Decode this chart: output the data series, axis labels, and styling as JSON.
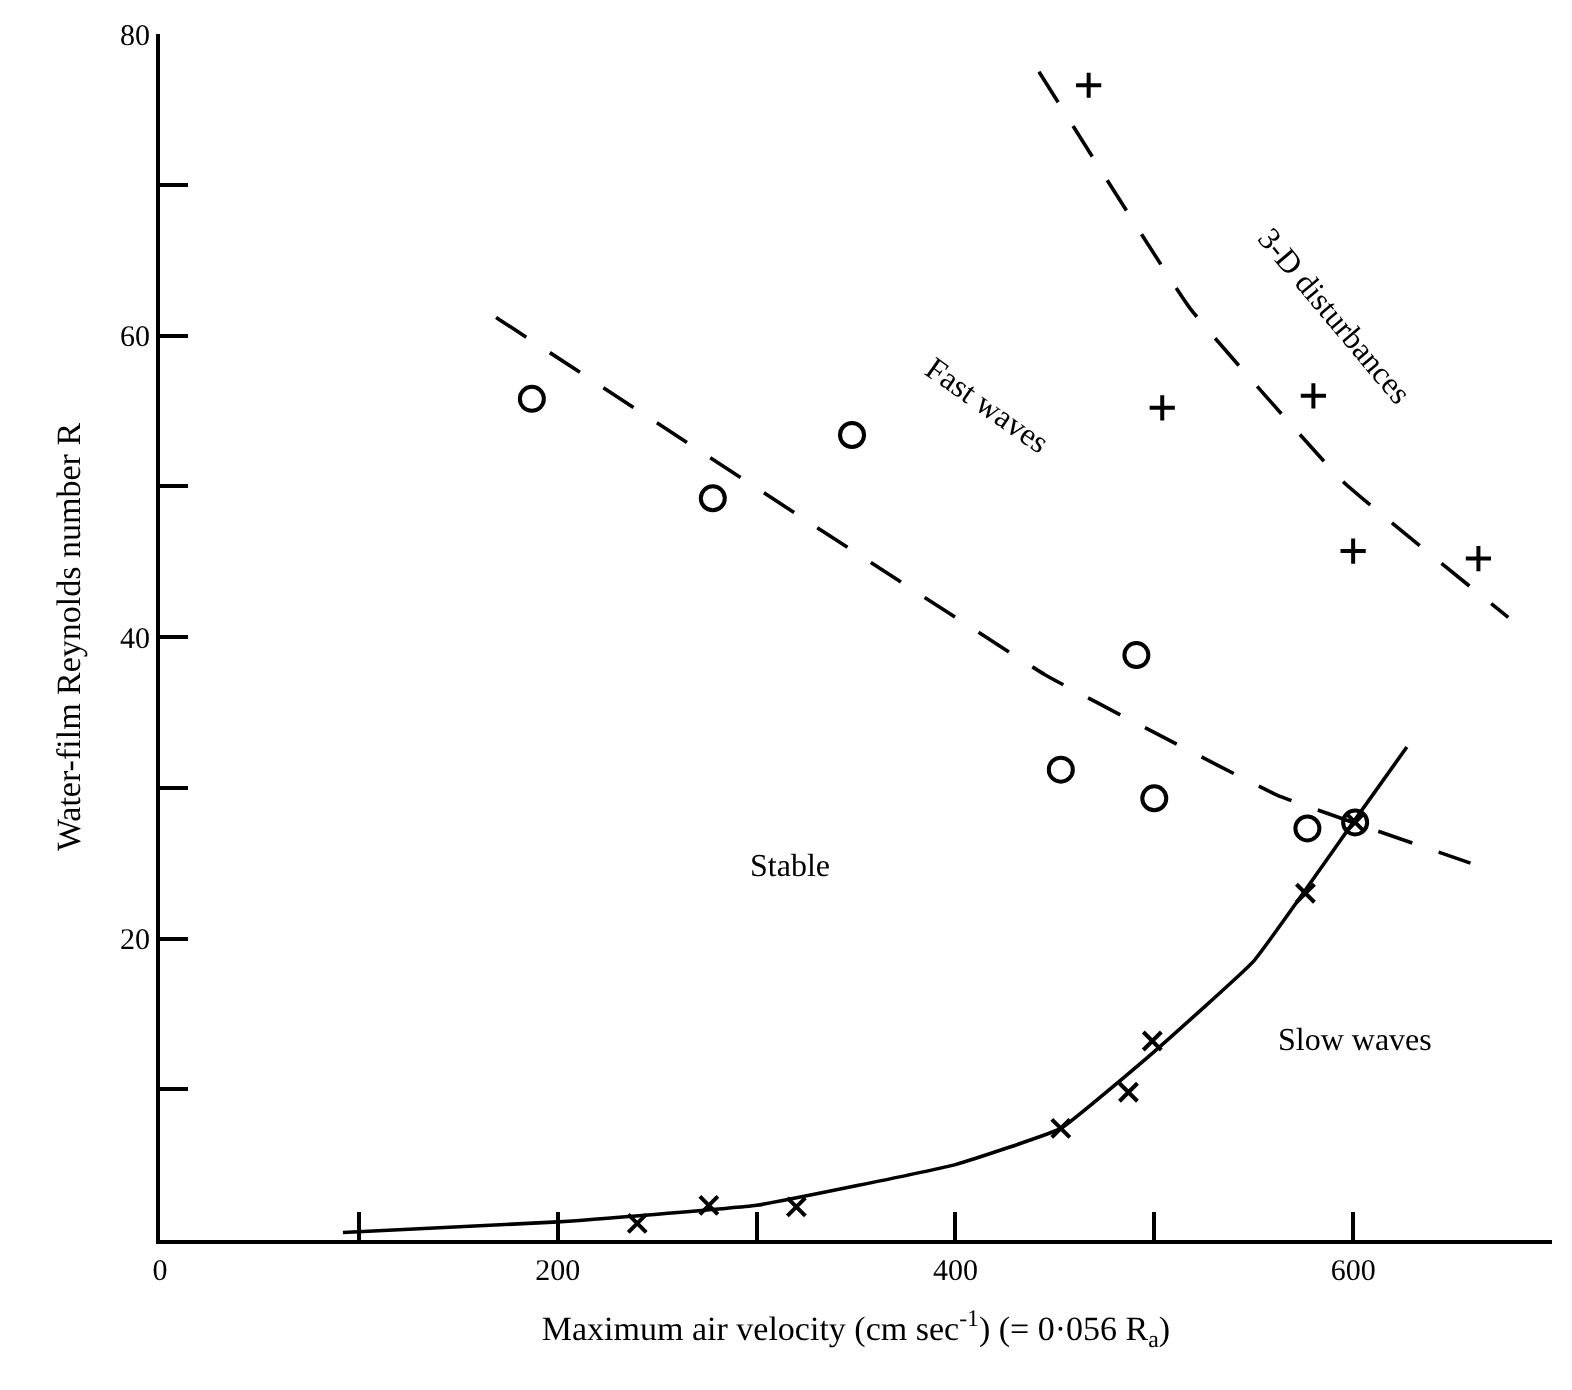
{
  "chart_data": {
    "type": "scatter",
    "xlabel": "Maximum air velocity (cm sec$^{-1}$) (= 0·056 R$_{a}$)",
    "ylabel": "Water-film Reynolds number R",
    "xlim": [
      0,
      700
    ],
    "ylim": [
      0,
      80
    ],
    "xticks": [
      0,
      {
        "value": 100,
        "label": null
      },
      200,
      {
        "value": 300,
        "label": null
      },
      400,
      {
        "value": 500,
        "label": null
      },
      600
    ],
    "yticks": [
      {
        "value": 0,
        "label": null
      },
      {
        "value": 10,
        "label": null
      },
      20,
      {
        "value": 30,
        "label": null
      },
      40,
      {
        "value": 50,
        "label": null
      },
      60,
      {
        "value": 70,
        "label": null
      },
      80
    ],
    "series": [
      {
        "marker": "circle",
        "color": "#000000",
        "x": [
          187,
          278,
          348,
          491,
          453,
          500,
          577,
          601
        ],
        "values": [
          55.8,
          49.2,
          53.4,
          38.8,
          31.2,
          29.3,
          27.3,
          27.7
        ]
      },
      {
        "marker": "cross",
        "color": "#000000",
        "x": [
          467,
          504,
          580,
          600,
          663
        ],
        "values": [
          76.6,
          55.2,
          56.0,
          45.7,
          45.2
        ]
      },
      {
        "marker": "x",
        "color": "#000000",
        "x": [
          240,
          276,
          320,
          453,
          487,
          499,
          576,
          601
        ],
        "values": [
          1.1,
          2.3,
          2.2,
          7.4,
          9.8,
          13.2,
          23.0,
          27.7
        ]
      },
      {
        "type": "line",
        "line_style": "solid",
        "color": "#000000",
        "x": [
          92,
          200,
          300,
          400,
          453,
          500,
          550,
          600,
          627
        ],
        "values": [
          0.5,
          1.2,
          2.3,
          5.0,
          7.4,
          12.5,
          18.5,
          27.7,
          32.7
        ]
      },
      {
        "type": "line",
        "line_style": "dashed",
        "color": "#000000",
        "x": [
          169,
          323,
          445,
          498,
          562,
          659
        ],
        "values": [
          61.2,
          47.9,
          37.5,
          33.8,
          29.5,
          25.0
        ]
      },
      {
        "type": "line",
        "line_style": "dashed",
        "color": "#000000",
        "x": [
          442,
          518,
          595,
          678
        ],
        "values": [
          77.5,
          61.8,
          50.3,
          41.3
        ]
      }
    ],
    "annotations": [
      "Fast waves",
      "3-D disturbances",
      "Stable",
      "Slow waves"
    ]
  }
}
